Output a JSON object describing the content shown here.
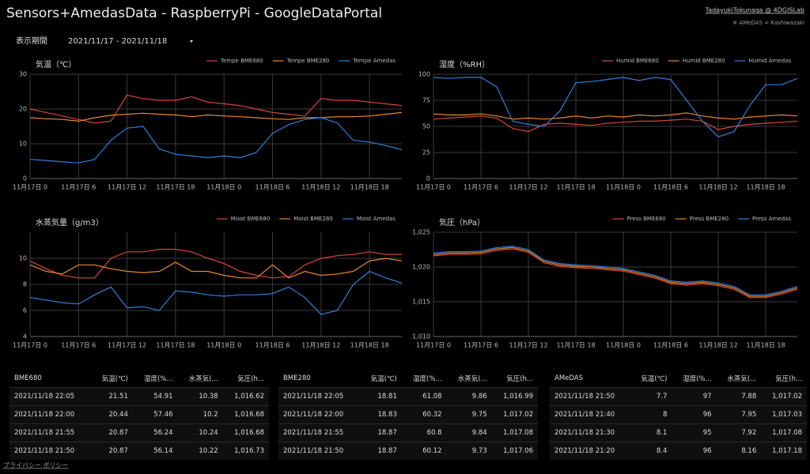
{
  "header": {
    "title": "Sensors+AmedasData - RaspberryPi - GoogleDataPortal",
    "author": "TadayukiTokunaga @ 4DGISLab",
    "note": "※ AMeDAS = Kashiwazaki",
    "period_label": "表示期間",
    "period": "2021/11/17 - 2021/11/18"
  },
  "chart_data": [
    {
      "type": "line",
      "title": "気温（℃）",
      "xlim": [
        0,
        46
      ],
      "xticks": [
        {
          "value": 0,
          "label": "11月17日 0"
        },
        {
          "value": 6,
          "label": "11月17日 6"
        },
        {
          "value": 12,
          "label": "11月17日 12"
        },
        {
          "value": 18,
          "label": "11月17日 18"
        },
        {
          "value": 24,
          "label": "11月18日 0"
        },
        {
          "value": 30,
          "label": "11月18日 6"
        },
        {
          "value": 36,
          "label": "11月18日 12"
        },
        {
          "value": 42,
          "label": "11月18日 18"
        }
      ],
      "ylim": [
        0,
        30
      ],
      "yticks": [
        0,
        10,
        20,
        30
      ],
      "grid": true,
      "x": [
        0,
        2,
        4,
        6,
        8,
        10,
        12,
        14,
        16,
        18,
        20,
        22,
        24,
        26,
        28,
        30,
        32,
        34,
        36,
        38,
        40,
        42,
        44,
        46
      ],
      "series": [
        {
          "name": "Tempe BME680",
          "color": "#d9453a",
          "values": [
            20,
            19,
            18,
            17,
            16,
            16.5,
            24,
            23,
            22.5,
            22.5,
            23.5,
            22,
            21.5,
            21,
            20,
            19,
            18.5,
            18,
            23,
            22.5,
            22.5,
            22,
            21.5,
            21
          ]
        },
        {
          "name": "Tempe BME280",
          "color": "#e8892b",
          "values": [
            17.5,
            17.2,
            17,
            16.5,
            17.5,
            18.2,
            18.5,
            18.8,
            18.5,
            18.3,
            17.8,
            18.3,
            18,
            17.8,
            17.5,
            17.2,
            17,
            17.5,
            17.5,
            17.8,
            17.8,
            18,
            18.5,
            19
          ]
        },
        {
          "name": "Tempe Amedas",
          "color": "#2f7fd8",
          "values": [
            5.5,
            5.2,
            4.8,
            4.5,
            5.5,
            11,
            14.5,
            15,
            8.5,
            7,
            6.5,
            6,
            6.5,
            6,
            7.5,
            13,
            15.5,
            17,
            17.5,
            16,
            11,
            10.5,
            9.5,
            8.3
          ]
        }
      ]
    },
    {
      "type": "line",
      "title": "湿度（%RH）",
      "xlim": [
        0,
        46
      ],
      "xticks": [
        {
          "value": 0,
          "label": "11月17日 0"
        },
        {
          "value": 6,
          "label": "11月17日 6"
        },
        {
          "value": 12,
          "label": "11月17日 12"
        },
        {
          "value": 18,
          "label": "11月17日 18"
        },
        {
          "value": 24,
          "label": "11月18日 0"
        },
        {
          "value": 30,
          "label": "11月18日 6"
        },
        {
          "value": 36,
          "label": "11月18日 12"
        },
        {
          "value": 42,
          "label": "11月18日 18"
        }
      ],
      "ylim": [
        0,
        100
      ],
      "yticks": [
        0,
        25,
        50,
        75,
        100
      ],
      "grid": true,
      "x": [
        0,
        2,
        4,
        6,
        8,
        10,
        12,
        14,
        16,
        18,
        20,
        22,
        24,
        26,
        28,
        30,
        32,
        34,
        36,
        38,
        40,
        42,
        44,
        46
      ],
      "series": [
        {
          "name": "Humid BME680",
          "color": "#d9453a",
          "values": [
            57,
            58,
            59,
            60,
            58,
            48,
            45,
            52,
            53,
            52,
            51,
            53,
            54,
            55,
            55,
            56,
            57,
            55,
            47,
            50,
            52,
            53,
            54,
            55
          ]
        },
        {
          "name": "Humid BME280",
          "color": "#e8892b",
          "values": [
            62,
            61,
            61,
            62,
            60,
            57,
            58,
            57,
            58,
            60,
            58,
            60,
            59,
            61,
            60,
            61,
            63,
            60,
            58,
            57,
            59,
            60,
            61,
            60
          ]
        },
        {
          "name": "Humid Amedas",
          "color": "#2f7fd8",
          "values": [
            97,
            96,
            97,
            97,
            88,
            55,
            52,
            50,
            65,
            92,
            93,
            95,
            97,
            94,
            97,
            95,
            75,
            55,
            40,
            45,
            70,
            90,
            90,
            96
          ]
        }
      ]
    },
    {
      "type": "line",
      "title": "水蒸気量（g/m3）",
      "xlim": [
        0,
        46
      ],
      "xticks": [
        {
          "value": 0,
          "label": "11月17日 0"
        },
        {
          "value": 6,
          "label": "11月17日 6"
        },
        {
          "value": 12,
          "label": "11月17日 12"
        },
        {
          "value": 18,
          "label": "11月17日 18"
        },
        {
          "value": 24,
          "label": "11月18日 0"
        },
        {
          "value": 30,
          "label": "11月18日 6"
        },
        {
          "value": 36,
          "label": "11月18日 12"
        },
        {
          "value": 42,
          "label": "11月18日 18"
        }
      ],
      "ylim": [
        4,
        12
      ],
      "yticks": [
        4,
        6,
        8,
        10
      ],
      "grid": true,
      "x": [
        0,
        2,
        4,
        6,
        8,
        10,
        12,
        14,
        16,
        18,
        20,
        22,
        24,
        26,
        28,
        30,
        32,
        34,
        36,
        38,
        40,
        42,
        44,
        46
      ],
      "series": [
        {
          "name": "Moist BME680",
          "color": "#d9453a",
          "values": [
            9.8,
            9.2,
            8.7,
            8.5,
            8.5,
            10,
            10.5,
            10.5,
            10.7,
            10.7,
            10.5,
            10,
            9.6,
            9,
            8.7,
            8.5,
            8.6,
            9.5,
            10,
            10.2,
            10.3,
            10.5,
            10.3,
            10.3
          ]
        },
        {
          "name": "Moist BME280",
          "color": "#e8892b",
          "values": [
            9.5,
            9,
            8.8,
            9.5,
            9.5,
            9.2,
            9,
            8.9,
            9,
            9.7,
            9,
            9,
            8.7,
            8.5,
            8.5,
            9.5,
            8.5,
            9,
            8.7,
            8.8,
            9,
            9.8,
            10,
            9.8
          ]
        },
        {
          "name": "Moist Amedas",
          "color": "#2f7fd8",
          "values": [
            7,
            6.8,
            6.6,
            6.5,
            7.2,
            7.8,
            6.2,
            6.3,
            6,
            7.5,
            7.4,
            7.2,
            7.1,
            7.2,
            7.2,
            7.3,
            7.8,
            7,
            5.7,
            6,
            8,
            9,
            8.5,
            8.1
          ]
        }
      ]
    },
    {
      "type": "line",
      "title": "気圧（hPa）",
      "xlim": [
        0,
        46
      ],
      "xticks": [
        {
          "value": 0,
          "label": "11月17日 0"
        },
        {
          "value": 6,
          "label": "11月17日 6"
        },
        {
          "value": 12,
          "label": "11月17日 12"
        },
        {
          "value": 18,
          "label": "11月17日 18"
        },
        {
          "value": 24,
          "label": "11月18日 0"
        },
        {
          "value": 30,
          "label": "11月18日 6"
        },
        {
          "value": 36,
          "label": "11月18日 12"
        },
        {
          "value": 42,
          "label": "11月18日 18"
        }
      ],
      "ylim": [
        1010,
        1025
      ],
      "yticks": [
        {
          "value": 1010,
          "label": "1,010"
        },
        {
          "value": 1015,
          "label": "1,015"
        },
        {
          "value": 1020,
          "label": "1,020"
        },
        {
          "value": 1025,
          "label": "1,025"
        }
      ],
      "grid": true,
      "x": [
        0,
        2,
        4,
        6,
        8,
        10,
        12,
        14,
        16,
        18,
        20,
        22,
        24,
        26,
        28,
        30,
        32,
        34,
        36,
        38,
        40,
        42,
        44,
        46
      ],
      "series": [
        {
          "name": "Press BME680",
          "color": "#d9453a",
          "values": [
            1021.6,
            1021.8,
            1021.8,
            1021.9,
            1022.4,
            1022.6,
            1022.1,
            1020.6,
            1020.1,
            1019.9,
            1019.8,
            1019.6,
            1019.4,
            1018.9,
            1018.4,
            1017.6,
            1017.4,
            1017.6,
            1017.3,
            1016.8,
            1015.6,
            1015.6,
            1016.1,
            1016.8
          ]
        },
        {
          "name": "Press BME280",
          "color": "#e8892b",
          "values": [
            1021.8,
            1022,
            1022,
            1022.1,
            1022.6,
            1022.8,
            1022.3,
            1020.8,
            1020.3,
            1020.1,
            1020,
            1019.8,
            1019.6,
            1019.1,
            1018.6,
            1017.8,
            1017.6,
            1017.8,
            1017.5,
            1017,
            1015.8,
            1015.8,
            1016.3,
            1017
          ]
        },
        {
          "name": "Press Amedas",
          "color": "#2f7fd8",
          "values": [
            1022,
            1022.2,
            1022.2,
            1022.3,
            1022.8,
            1023,
            1022.5,
            1021,
            1020.5,
            1020.3,
            1020.2,
            1020,
            1019.8,
            1019.3,
            1018.8,
            1018,
            1017.8,
            1018,
            1017.7,
            1017.2,
            1016,
            1016,
            1016.5,
            1017.2
          ]
        }
      ]
    }
  ],
  "tables": [
    {
      "columns": [
        "BME680",
        "気温(℃)",
        "湿度(%...",
        "水蒸気(...",
        "気圧(h..."
      ],
      "rows": [
        [
          "2021/11/18 22:05",
          "21.51",
          "54.91",
          "10.38",
          "1,016.62"
        ],
        [
          "2021/11/18 22:00",
          "20.44",
          "57.46",
          "10.2",
          "1,016.68"
        ],
        [
          "2021/11/18 21:55",
          "20.87",
          "56.24",
          "10.24",
          "1,016.68"
        ],
        [
          "2021/11/18 21:50",
          "20.87",
          "56.14",
          "10.22",
          "1,016.73"
        ]
      ]
    },
    {
      "columns": [
        "BME280",
        "気温(℃)",
        "湿度(%...",
        "水蒸気(...",
        "気圧(h..."
      ],
      "rows": [
        [
          "2021/11/18 22:05",
          "18.81",
          "61.08",
          "9.86",
          "1,016.99"
        ],
        [
          "2021/11/18 22:00",
          "18.83",
          "60.32",
          "9.75",
          "1,017.02"
        ],
        [
          "2021/11/18 21:55",
          "18.87",
          "60.8",
          "9.84",
          "1,017.08"
        ],
        [
          "2021/11/18 21:50",
          "18.87",
          "60.12",
          "9.73",
          "1,017.06"
        ]
      ]
    },
    {
      "columns": [
        "AMeDAS",
        "気温(℃)",
        "湿度(%...",
        "水蒸気(...",
        "気圧(h..."
      ],
      "rows": [
        [
          "2021/11/18 21:50",
          "7.7",
          "97",
          "7.88",
          "1,017.02"
        ],
        [
          "2021/11/18 21:40",
          "8",
          "96",
          "7.95",
          "1,017.03"
        ],
        [
          "2021/11/18 21:30",
          "8.1",
          "95",
          "7.92",
          "1,017.08"
        ],
        [
          "2021/11/18 21:20",
          "8.4",
          "96",
          "8.16",
          "1,017.18"
        ]
      ]
    }
  ],
  "footer": {
    "privacy": "プライバシー ポリシー"
  }
}
